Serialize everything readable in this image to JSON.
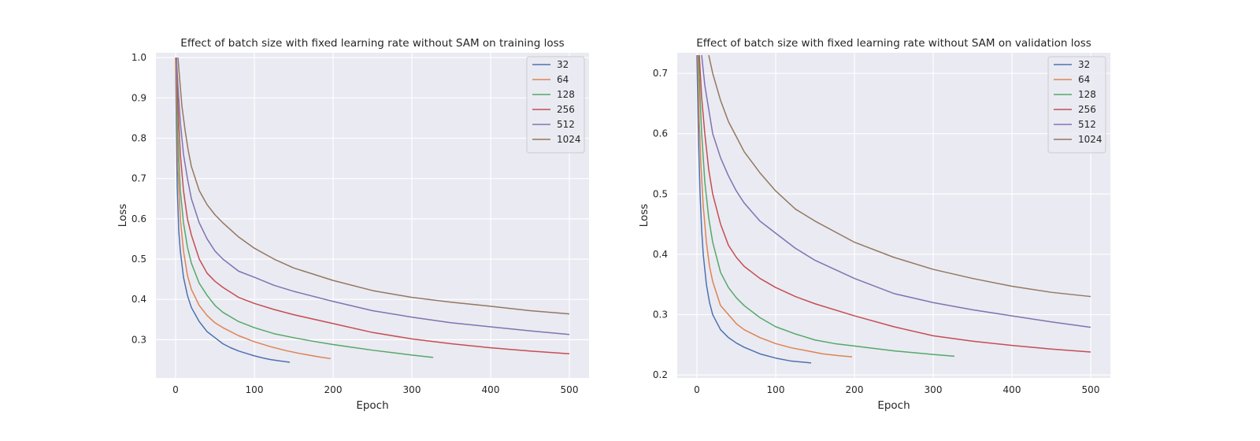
{
  "chart_data": [
    {
      "type": "line",
      "title": "Effect of batch size with fixed learning rate without SAM on training loss",
      "xlabel": "Epoch",
      "ylabel": "Loss",
      "xlim": [
        -25,
        525
      ],
      "ylim": [
        0.205,
        1.012
      ],
      "xticks": [
        0,
        100,
        200,
        300,
        400,
        500
      ],
      "yticks": [
        0.3,
        0.4,
        0.5,
        0.6,
        0.7,
        0.8,
        0.9,
        1.0
      ],
      "grid": true,
      "legend_position": "top-right",
      "series": [
        {
          "name": "32",
          "color": "#4c72b0",
          "x": [
            0,
            1,
            2,
            4,
            6,
            10,
            15,
            20,
            30,
            40,
            50,
            60,
            70,
            80,
            90,
            100,
            110,
            120,
            130,
            145
          ],
          "y": [
            1.0,
            0.82,
            0.68,
            0.57,
            0.52,
            0.455,
            0.41,
            0.38,
            0.345,
            0.32,
            0.305,
            0.29,
            0.28,
            0.272,
            0.266,
            0.26,
            0.255,
            0.251,
            0.248,
            0.244
          ]
        },
        {
          "name": "64",
          "color": "#dd8452",
          "x": [
            0,
            1,
            3,
            6,
            10,
            15,
            20,
            30,
            40,
            50,
            60,
            80,
            100,
            120,
            140,
            160,
            180,
            197
          ],
          "y": [
            1.0,
            0.92,
            0.72,
            0.6,
            0.52,
            0.46,
            0.425,
            0.385,
            0.36,
            0.342,
            0.33,
            0.31,
            0.295,
            0.283,
            0.273,
            0.265,
            0.258,
            0.253
          ]
        },
        {
          "name": "128",
          "color": "#55a868",
          "x": [
            1,
            3,
            6,
            10,
            15,
            20,
            30,
            40,
            50,
            60,
            80,
            100,
            125,
            150,
            175,
            200,
            225,
            250,
            275,
            300,
            327
          ],
          "y": [
            1.0,
            0.8,
            0.67,
            0.59,
            0.53,
            0.49,
            0.44,
            0.41,
            0.385,
            0.368,
            0.345,
            0.33,
            0.315,
            0.305,
            0.296,
            0.288,
            0.281,
            0.274,
            0.268,
            0.262,
            0.256
          ]
        },
        {
          "name": "256",
          "color": "#c44e52",
          "x": [
            1,
            3,
            6,
            10,
            15,
            20,
            30,
            40,
            50,
            60,
            80,
            100,
            125,
            150,
            200,
            250,
            300,
            350,
            400,
            450,
            500
          ],
          "y": [
            1.0,
            0.88,
            0.76,
            0.67,
            0.6,
            0.56,
            0.5,
            0.465,
            0.445,
            0.43,
            0.405,
            0.39,
            0.375,
            0.362,
            0.34,
            0.318,
            0.302,
            0.29,
            0.28,
            0.272,
            0.265
          ]
        },
        {
          "name": "512",
          "color": "#8172b3",
          "x": [
            1,
            3,
            6,
            10,
            15,
            20,
            30,
            40,
            50,
            60,
            80,
            100,
            125,
            150,
            200,
            250,
            300,
            350,
            400,
            450,
            500
          ],
          "y": [
            1.0,
            0.93,
            0.84,
            0.76,
            0.7,
            0.65,
            0.59,
            0.55,
            0.52,
            0.5,
            0.47,
            0.455,
            0.435,
            0.42,
            0.395,
            0.372,
            0.356,
            0.342,
            0.332,
            0.322,
            0.313
          ]
        },
        {
          "name": "1024",
          "color": "#937860",
          "x": [
            3,
            5,
            8,
            12,
            16,
            20,
            30,
            40,
            50,
            60,
            80,
            100,
            125,
            150,
            200,
            250,
            300,
            350,
            400,
            450,
            500
          ],
          "y": [
            1.0,
            0.95,
            0.88,
            0.82,
            0.77,
            0.73,
            0.67,
            0.635,
            0.61,
            0.59,
            0.555,
            0.527,
            0.5,
            0.478,
            0.447,
            0.422,
            0.405,
            0.393,
            0.383,
            0.372,
            0.364
          ]
        }
      ]
    },
    {
      "type": "line",
      "title": "Effect of batch size with fixed learning rate without SAM on validation loss",
      "xlabel": "Epoch",
      "ylabel": "Loss",
      "xlim": [
        -25,
        525
      ],
      "ylim": [
        0.195,
        0.734
      ],
      "xticks": [
        0,
        100,
        200,
        300,
        400,
        500
      ],
      "yticks": [
        0.2,
        0.3,
        0.4,
        0.5,
        0.6,
        0.7
      ],
      "grid": true,
      "legend_position": "top-right",
      "series": [
        {
          "name": "32",
          "color": "#4c72b0",
          "x": [
            0,
            1,
            2,
            4,
            6,
            8,
            12,
            16,
            20,
            30,
            40,
            50,
            60,
            80,
            100,
            120,
            145
          ],
          "y": [
            0.73,
            0.66,
            0.59,
            0.5,
            0.44,
            0.4,
            0.35,
            0.32,
            0.3,
            0.275,
            0.262,
            0.253,
            0.246,
            0.235,
            0.228,
            0.223,
            0.22
          ]
        },
        {
          "name": "64",
          "color": "#dd8452",
          "x": [
            1,
            3,
            5,
            8,
            12,
            16,
            20,
            25,
            30,
            40,
            50,
            60,
            80,
            100,
            120,
            140,
            160,
            180,
            197
          ],
          "y": [
            0.73,
            0.62,
            0.55,
            0.48,
            0.42,
            0.38,
            0.355,
            0.335,
            0.315,
            0.3,
            0.285,
            0.275,
            0.262,
            0.252,
            0.245,
            0.24,
            0.235,
            0.232,
            0.23
          ]
        },
        {
          "name": "128",
          "color": "#55a868",
          "x": [
            2,
            4,
            6,
            10,
            15,
            20,
            30,
            40,
            50,
            60,
            80,
            100,
            125,
            150,
            175,
            200,
            250,
            300,
            327
          ],
          "y": [
            0.73,
            0.66,
            0.6,
            0.52,
            0.46,
            0.42,
            0.37,
            0.345,
            0.328,
            0.315,
            0.295,
            0.28,
            0.268,
            0.258,
            0.252,
            0.248,
            0.24,
            0.234,
            0.231
          ]
        },
        {
          "name": "256",
          "color": "#c44e52",
          "x": [
            3,
            6,
            10,
            15,
            20,
            30,
            40,
            50,
            60,
            80,
            100,
            125,
            150,
            200,
            250,
            300,
            350,
            400,
            450,
            500
          ],
          "y": [
            0.73,
            0.66,
            0.6,
            0.54,
            0.5,
            0.45,
            0.415,
            0.395,
            0.38,
            0.36,
            0.345,
            0.33,
            0.318,
            0.298,
            0.28,
            0.265,
            0.256,
            0.249,
            0.243,
            0.238
          ]
        },
        {
          "name": "512",
          "color": "#8172b3",
          "x": [
            6,
            10,
            15,
            20,
            30,
            40,
            50,
            60,
            80,
            100,
            125,
            150,
            200,
            250,
            300,
            350,
            400,
            450,
            500
          ],
          "y": [
            0.73,
            0.68,
            0.64,
            0.6,
            0.56,
            0.53,
            0.505,
            0.485,
            0.455,
            0.435,
            0.41,
            0.39,
            0.36,
            0.335,
            0.32,
            0.308,
            0.298,
            0.288,
            0.279
          ]
        },
        {
          "name": "1024",
          "color": "#937860",
          "x": [
            15,
            20,
            30,
            40,
            50,
            60,
            80,
            100,
            125,
            150,
            200,
            250,
            300,
            350,
            400,
            450,
            500
          ],
          "y": [
            0.73,
            0.7,
            0.655,
            0.62,
            0.595,
            0.57,
            0.535,
            0.505,
            0.475,
            0.455,
            0.42,
            0.395,
            0.375,
            0.36,
            0.347,
            0.337,
            0.33
          ]
        }
      ]
    }
  ]
}
